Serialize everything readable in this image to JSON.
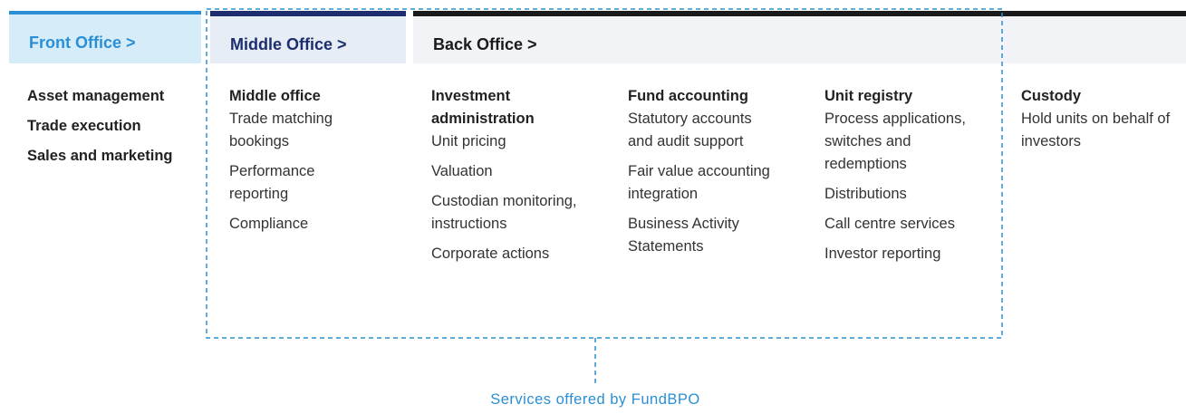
{
  "tabs": [
    "Front Office >",
    "Middle Office >",
    "Back Office >"
  ],
  "columns": [
    {
      "items": [
        "Asset management",
        "Trade execution",
        "Sales and marketing"
      ]
    },
    {
      "heading": "Middle office",
      "items": [
        "Trade matching bookings",
        "Performance reporting",
        "Compliance"
      ]
    },
    {
      "heading": "Investment administration",
      "items": [
        "Unit pricing",
        "Valuation",
        "Custodian monitoring, instructions",
        "Corporate actions"
      ]
    },
    {
      "heading": "Fund accounting",
      "items": [
        "Statutory accounts and audit support",
        "Fair value accounting integration",
        "Business Activity Statements"
      ]
    },
    {
      "heading": "Unit registry",
      "items": [
        "Process applications, switches and redemptions",
        "Distributions",
        "Call centre services",
        "Investor reporting"
      ]
    },
    {
      "heading": "Custody",
      "items": [
        "Hold units on behalf of investors"
      ]
    }
  ],
  "caption": "Services offered by FundBPO"
}
